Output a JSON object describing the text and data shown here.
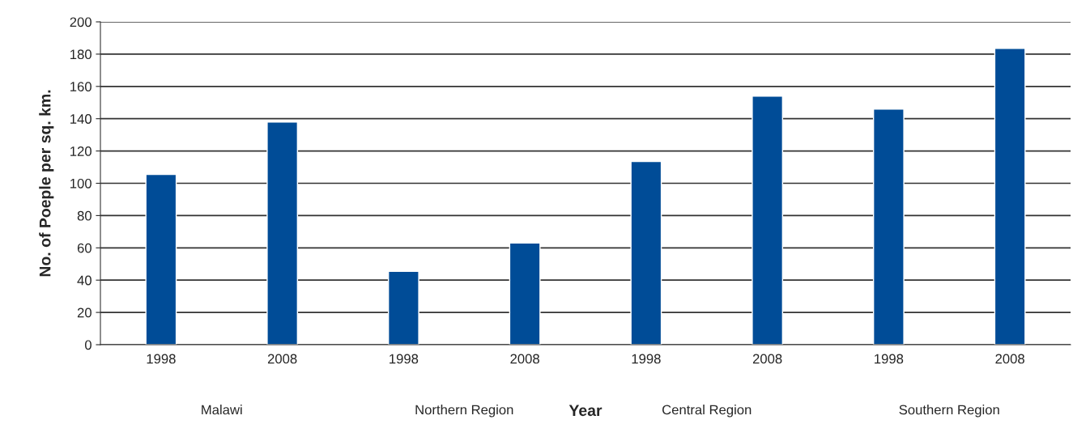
{
  "chart_data": {
    "type": "bar",
    "xlabel": "Year",
    "ylabel": "No. of Poeple per sq. km.",
    "categories": [
      "1998",
      "2008",
      "1998",
      "2008",
      "1998",
      "2008",
      "1998",
      "2008"
    ],
    "values": [
      105.5,
      138,
      45.5,
      63,
      113.5,
      154,
      146,
      183.5
    ],
    "color": "#004c97",
    "ylim": [
      0,
      200
    ],
    "yticks": [
      0,
      20,
      40,
      60,
      80,
      100,
      120,
      140,
      160,
      180,
      200
    ],
    "grid": "y",
    "legend": false,
    "annotations": [
      "Malawi",
      "Northern Region",
      "Central Region",
      "Southern Region"
    ]
  }
}
